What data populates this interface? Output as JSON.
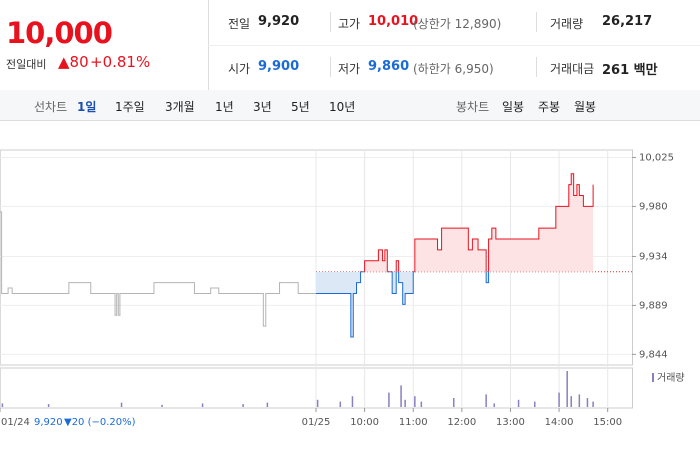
{
  "header": {
    "price": "10,000",
    "change_label": "전일대비",
    "change": "▲80",
    "change_pct": "+0.81%",
    "stats": [
      {
        "label": "전일",
        "value": "9,920"
      },
      {
        "label": "고가",
        "value": "10,010",
        "note": "(상한가 12,890)"
      },
      {
        "label": "거래량",
        "value": "26,217"
      },
      {
        "label": "시가",
        "value": "9,900"
      },
      {
        "label": "저가",
        "value": "9,860",
        "note": "(하한가 6,950)"
      },
      {
        "label": "거래대금",
        "value": "261 백만"
      }
    ]
  },
  "tabs": {
    "line_label": "선차트",
    "line_periods": [
      "1일",
      "1주일",
      "3개월",
      "1년",
      "3년",
      "5년",
      "10년"
    ],
    "candle_label": "봉차트",
    "candle_periods": [
      "일봉",
      "주봉",
      "월봉"
    ]
  },
  "chart_data": {
    "type": "line",
    "x": [
      0,
      2,
      10,
      15,
      80,
      85,
      110,
      112,
      140,
      142,
      144,
      146,
      148,
      160,
      185,
      190,
      220,
      240,
      260,
      270,
      300,
      322,
      325,
      328,
      340,
      345,
      365,
      368,
      390,
      430,
      433,
      436,
      440,
      445,
      450,
      465,
      467,
      472,
      475,
      478,
      484,
      489,
      492,
      497,
      500,
      505,
      510,
      512,
      535,
      540,
      545,
      575,
      578,
      583,
      590,
      598,
      600,
      603,
      607,
      612,
      660,
      665,
      684,
      686,
      700,
      702,
      705,
      708,
      712,
      715,
      720,
      730,
      732
    ],
    "series": [
      {
        "color": "#b4b4b4",
        "values": [
          9975,
          9900,
          9905,
          9900,
          9900,
          9910,
          9910,
          9900,
          9900,
          9880,
          9900,
          9880,
          9900,
          9900,
          9900,
          9910,
          9910,
          9900,
          9905,
          9900,
          9900,
          9900,
          9870,
          9900,
          9900,
          9910,
          9910,
          9900,
          9900,
          null,
          null,
          null,
          null,
          null,
          null,
          null,
          null,
          null,
          null,
          null,
          null,
          null,
          null,
          null,
          null,
          null,
          null,
          null,
          null,
          null,
          null,
          null,
          null,
          null,
          null,
          null,
          null,
          null,
          null,
          null,
          null,
          null,
          null,
          null,
          null,
          null,
          null,
          null,
          null,
          null,
          null,
          null,
          null
        ]
      },
      {
        "color": "#e8121f",
        "down_color": "#1a6bd6",
        "values": [
          null,
          null,
          null,
          null,
          null,
          null,
          null,
          null,
          null,
          null,
          null,
          null,
          null,
          null,
          null,
          null,
          null,
          null,
          null,
          null,
          null,
          null,
          null,
          null,
          null,
          null,
          null,
          null,
          9900,
          9900,
          9860,
          9900,
          9910,
          9920,
          9930,
          9930,
          9940,
          9930,
          9940,
          9920,
          9900,
          9930,
          9910,
          9890,
          9900,
          9900,
          9920,
          9950,
          9950,
          9940,
          9960,
          9960,
          9940,
          9950,
          9940,
          9940,
          9910,
          9950,
          9960,
          9950,
          9950,
          9960,
          9960,
          9980,
          9980,
          10000,
          10010,
          9990,
          10000,
          9990,
          9980,
          9980,
          10000
        ]
      }
    ],
    "reference_line": 9920,
    "xlim": [
      0,
      780
    ],
    "ylim": [
      9837,
      10030
    ],
    "xticks": [
      {
        "value": 0,
        "label": "01/24"
      },
      {
        "value": 390,
        "label": "01/25"
      },
      {
        "value": 450,
        "label": "10:00"
      },
      {
        "value": 510,
        "label": "11:00"
      },
      {
        "value": 570,
        "label": "12:00"
      },
      {
        "value": 630,
        "label": "13:00"
      },
      {
        "value": 690,
        "label": "14:00"
      },
      {
        "value": 750,
        "label": "15:00"
      }
    ],
    "yticks": [
      {
        "value": 10025,
        "label": "10,025"
      },
      {
        "value": 9980,
        "label": "9,980"
      },
      {
        "value": 9934,
        "label": "9,934"
      },
      {
        "value": 9889,
        "label": "9,889"
      },
      {
        "value": 9844,
        "label": "9,844"
      }
    ],
    "volume": {
      "label": "거래량",
      "color": "#8a7fc0",
      "x": [
        3,
        60,
        150,
        200,
        250,
        300,
        330,
        392,
        420,
        435,
        480,
        495,
        500,
        512,
        520,
        560,
        600,
        610,
        640,
        660,
        690,
        700,
        705,
        715,
        725,
        732
      ],
      "values": [
        10,
        8,
        12,
        6,
        10,
        8,
        12,
        20,
        15,
        30,
        40,
        60,
        20,
        30,
        15,
        25,
        35,
        10,
        20,
        15,
        40,
        100,
        30,
        35,
        25,
        15
      ]
    },
    "note_price": "9,920",
    "note_change": "▼20 (−0.20%)"
  }
}
